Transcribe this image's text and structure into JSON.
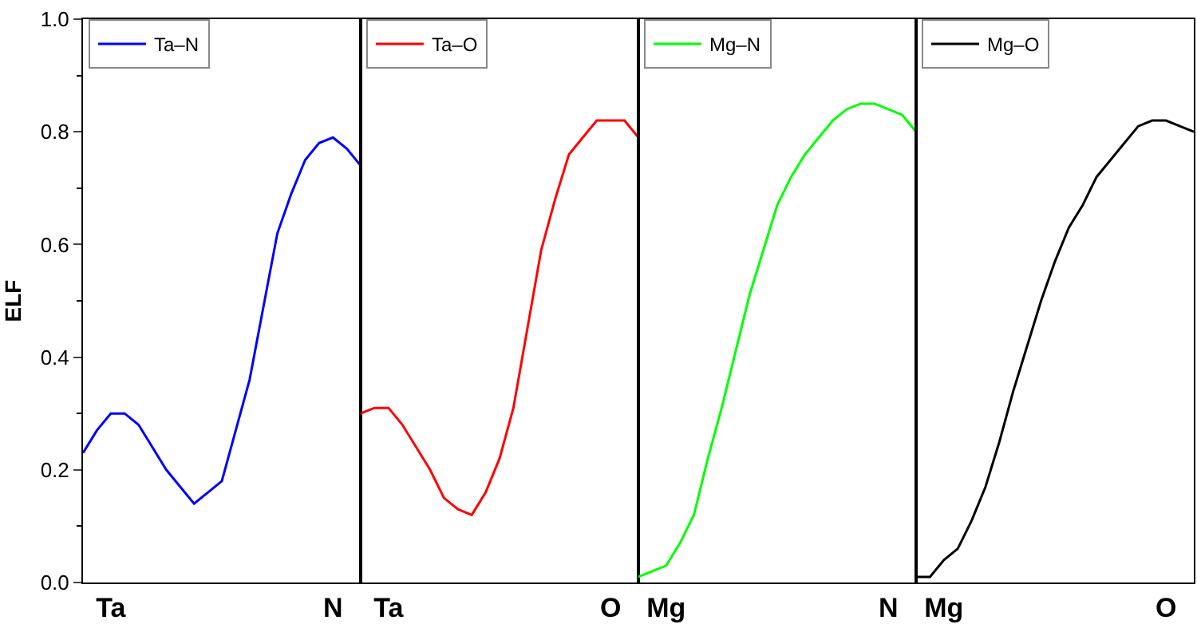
{
  "chart_data": [
    {
      "type": "line",
      "ylabel": "ELF",
      "legend": "top left",
      "marker": "none",
      "line_style": "solid",
      "categories": [
        null,
        null,
        "Ta",
        null,
        null,
        null,
        null,
        null,
        null,
        null,
        null,
        null,
        null,
        null,
        null,
        null,
        null,
        null,
        "N",
        null,
        null
      ],
      "series": [
        {
          "name": "Ta–N",
          "color": "#0000ff",
          "values": [
            0.23,
            0.27,
            0.3,
            0.3,
            0.28,
            0.24,
            0.2,
            0.17,
            0.14,
            0.16,
            0.18,
            0.27,
            0.36,
            0.49,
            0.62,
            0.69,
            0.75,
            0.78,
            0.79,
            0.77,
            0.74
          ]
        }
      ],
      "ylim": [
        0,
        1
      ],
      "yticks": [
        {
          "value": 0,
          "label": "0.0"
        },
        {
          "value": 0.1,
          "label": null
        },
        {
          "value": 0.2,
          "label": "0.2"
        },
        {
          "value": 0.3,
          "label": null
        },
        {
          "value": 0.4,
          "label": "0.4"
        },
        {
          "value": 0.5,
          "label": null
        },
        {
          "value": 0.6,
          "label": "0.6"
        },
        {
          "value": 0.7,
          "label": null
        },
        {
          "value": 0.8,
          "label": "0.8"
        },
        {
          "value": 0.9,
          "label": null
        },
        {
          "value": 1,
          "label": "1.0"
        }
      ]
    },
    {
      "type": "line",
      "legend": "top left",
      "marker": "none",
      "line_style": "solid",
      "tick_labels": "x",
      "categories": [
        null,
        null,
        "Ta",
        null,
        null,
        null,
        null,
        null,
        null,
        null,
        null,
        null,
        null,
        null,
        null,
        null,
        null,
        null,
        "O",
        null,
        null
      ],
      "series": [
        {
          "name": "Ta–O",
          "color": "#ff0000",
          "values": [
            0.3,
            0.31,
            0.31,
            0.28,
            0.24,
            0.2,
            0.15,
            0.13,
            0.12,
            0.16,
            0.22,
            0.31,
            0.45,
            0.59,
            0.68,
            0.76,
            0.79,
            0.82,
            0.82,
            0.82,
            0.79
          ]
        }
      ],
      "ylim": [
        0,
        1
      ]
    },
    {
      "type": "line",
      "legend": "top left",
      "marker": "none",
      "line_style": "solid",
      "tick_labels": "x",
      "categories": [
        null,
        null,
        "Mg",
        null,
        null,
        null,
        null,
        null,
        null,
        null,
        null,
        null,
        null,
        null,
        null,
        null,
        null,
        null,
        "N",
        null,
        null
      ],
      "series": [
        {
          "name": "Mg–N",
          "color": "#00ff00",
          "values": [
            0.01,
            0.02,
            0.03,
            0.07,
            0.12,
            0.22,
            0.31,
            0.41,
            0.51,
            0.59,
            0.67,
            0.72,
            0.76,
            0.79,
            0.82,
            0.84,
            0.85,
            0.85,
            0.84,
            0.83,
            0.8
          ]
        }
      ],
      "ylim": [
        0,
        1
      ]
    },
    {
      "type": "line",
      "legend": "top left",
      "marker": "none",
      "line_style": "solid",
      "tick_labels": "x",
      "categories": [
        null,
        null,
        "Mg",
        null,
        null,
        null,
        null,
        null,
        null,
        null,
        null,
        null,
        null,
        null,
        null,
        null,
        null,
        null,
        "O",
        null,
        null
      ],
      "series": [
        {
          "name": "Mg–O",
          "color": "#000000",
          "values": [
            0.01,
            0.01,
            0.04,
            0.06,
            0.11,
            0.17,
            0.25,
            0.34,
            0.42,
            0.5,
            0.57,
            0.63,
            0.67,
            0.72,
            0.75,
            0.78,
            0.81,
            0.82,
            0.82,
            0.81,
            0.8
          ]
        }
      ],
      "ylim": [
        0,
        1
      ]
    }
  ]
}
